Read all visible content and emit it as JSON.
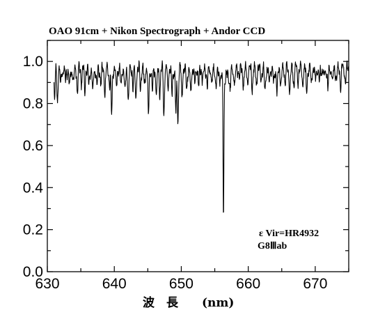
{
  "chart_data": {
    "type": "line",
    "title": "OAO 91cm + Nikon Spectrograph + Andor CCD",
    "xlabel": "波　長　　(nm)",
    "ylabel": "",
    "xlim": [
      630,
      675
    ],
    "ylim": [
      0.0,
      1.1
    ],
    "xticks": [
      630,
      640,
      650,
      660,
      670
    ],
    "yticks": [
      0.0,
      0.2,
      0.4,
      0.6,
      0.8,
      1.0
    ],
    "xtick_labels": [
      "630",
      "640",
      "650",
      "660",
      "670"
    ],
    "ytick_labels": [
      "0.0",
      "0.2",
      "0.4",
      "0.6",
      "0.8",
      "1.0"
    ],
    "annotations": [
      "ε Vir=HR4932",
      "G8Ⅲab"
    ],
    "grid": false,
    "series": [
      {
        "continuum": 0.96,
        "absorption_lines": [
          {
            "x": 631.1,
            "y": 0.82
          },
          {
            "x": 631.5,
            "y": 0.81
          },
          {
            "x": 632.0,
            "y": 0.88
          },
          {
            "x": 632.7,
            "y": 0.9
          },
          {
            "x": 633.3,
            "y": 0.87
          },
          {
            "x": 633.9,
            "y": 0.89
          },
          {
            "x": 634.5,
            "y": 0.85
          },
          {
            "x": 635.1,
            "y": 0.91
          },
          {
            "x": 635.6,
            "y": 0.86
          },
          {
            "x": 636.2,
            "y": 0.88
          },
          {
            "x": 636.8,
            "y": 0.84
          },
          {
            "x": 637.4,
            "y": 0.88
          },
          {
            "x": 638.0,
            "y": 0.89
          },
          {
            "x": 638.6,
            "y": 0.85
          },
          {
            "x": 639.3,
            "y": 0.88
          },
          {
            "x": 639.6,
            "y": 0.73
          },
          {
            "x": 640.3,
            "y": 0.86
          },
          {
            "x": 641.0,
            "y": 0.87
          },
          {
            "x": 641.6,
            "y": 0.85
          },
          {
            "x": 642.1,
            "y": 0.81
          },
          {
            "x": 642.8,
            "y": 0.88
          },
          {
            "x": 643.2,
            "y": 0.82
          },
          {
            "x": 643.9,
            "y": 0.86
          },
          {
            "x": 644.5,
            "y": 0.88
          },
          {
            "x": 645.1,
            "y": 0.73
          },
          {
            "x": 645.7,
            "y": 0.86
          },
          {
            "x": 646.3,
            "y": 0.83
          },
          {
            "x": 646.8,
            "y": 0.86
          },
          {
            "x": 647.4,
            "y": 0.75
          },
          {
            "x": 648.0,
            "y": 0.87
          },
          {
            "x": 648.6,
            "y": 0.83
          },
          {
            "x": 649.2,
            "y": 0.74
          },
          {
            "x": 649.5,
            "y": 0.72
          },
          {
            "x": 650.1,
            "y": 0.83
          },
          {
            "x": 650.8,
            "y": 0.87
          },
          {
            "x": 651.4,
            "y": 0.84
          },
          {
            "x": 652.0,
            "y": 0.89
          },
          {
            "x": 652.6,
            "y": 0.87
          },
          {
            "x": 653.2,
            "y": 0.9
          },
          {
            "x": 653.9,
            "y": 0.88
          },
          {
            "x": 654.6,
            "y": 0.89
          },
          {
            "x": 655.2,
            "y": 0.9
          },
          {
            "x": 656.3,
            "y": 0.31
          },
          {
            "x": 657.3,
            "y": 0.89
          },
          {
            "x": 658.0,
            "y": 0.9
          },
          {
            "x": 658.7,
            "y": 0.92
          },
          {
            "x": 659.3,
            "y": 0.89
          },
          {
            "x": 659.9,
            "y": 0.91
          },
          {
            "x": 660.6,
            "y": 0.88
          },
          {
            "x": 661.2,
            "y": 0.9
          },
          {
            "x": 661.9,
            "y": 0.92
          },
          {
            "x": 662.5,
            "y": 0.86
          },
          {
            "x": 663.1,
            "y": 0.9
          },
          {
            "x": 663.8,
            "y": 0.89
          },
          {
            "x": 664.3,
            "y": 0.84
          },
          {
            "x": 664.9,
            "y": 0.88
          },
          {
            "x": 665.5,
            "y": 0.91
          },
          {
            "x": 666.2,
            "y": 0.86
          },
          {
            "x": 666.8,
            "y": 0.89
          },
          {
            "x": 667.4,
            "y": 0.91
          },
          {
            "x": 668.1,
            "y": 0.89
          },
          {
            "x": 668.7,
            "y": 0.85
          },
          {
            "x": 669.4,
            "y": 0.9
          },
          {
            "x": 670.0,
            "y": 0.91
          },
          {
            "x": 670.6,
            "y": 0.89
          },
          {
            "x": 671.3,
            "y": 0.91
          },
          {
            "x": 671.9,
            "y": 0.86
          },
          {
            "x": 672.6,
            "y": 0.9
          },
          {
            "x": 673.2,
            "y": 0.92
          },
          {
            "x": 673.8,
            "y": 0.89
          },
          {
            "x": 674.5,
            "y": 0.91
          }
        ]
      }
    ]
  }
}
